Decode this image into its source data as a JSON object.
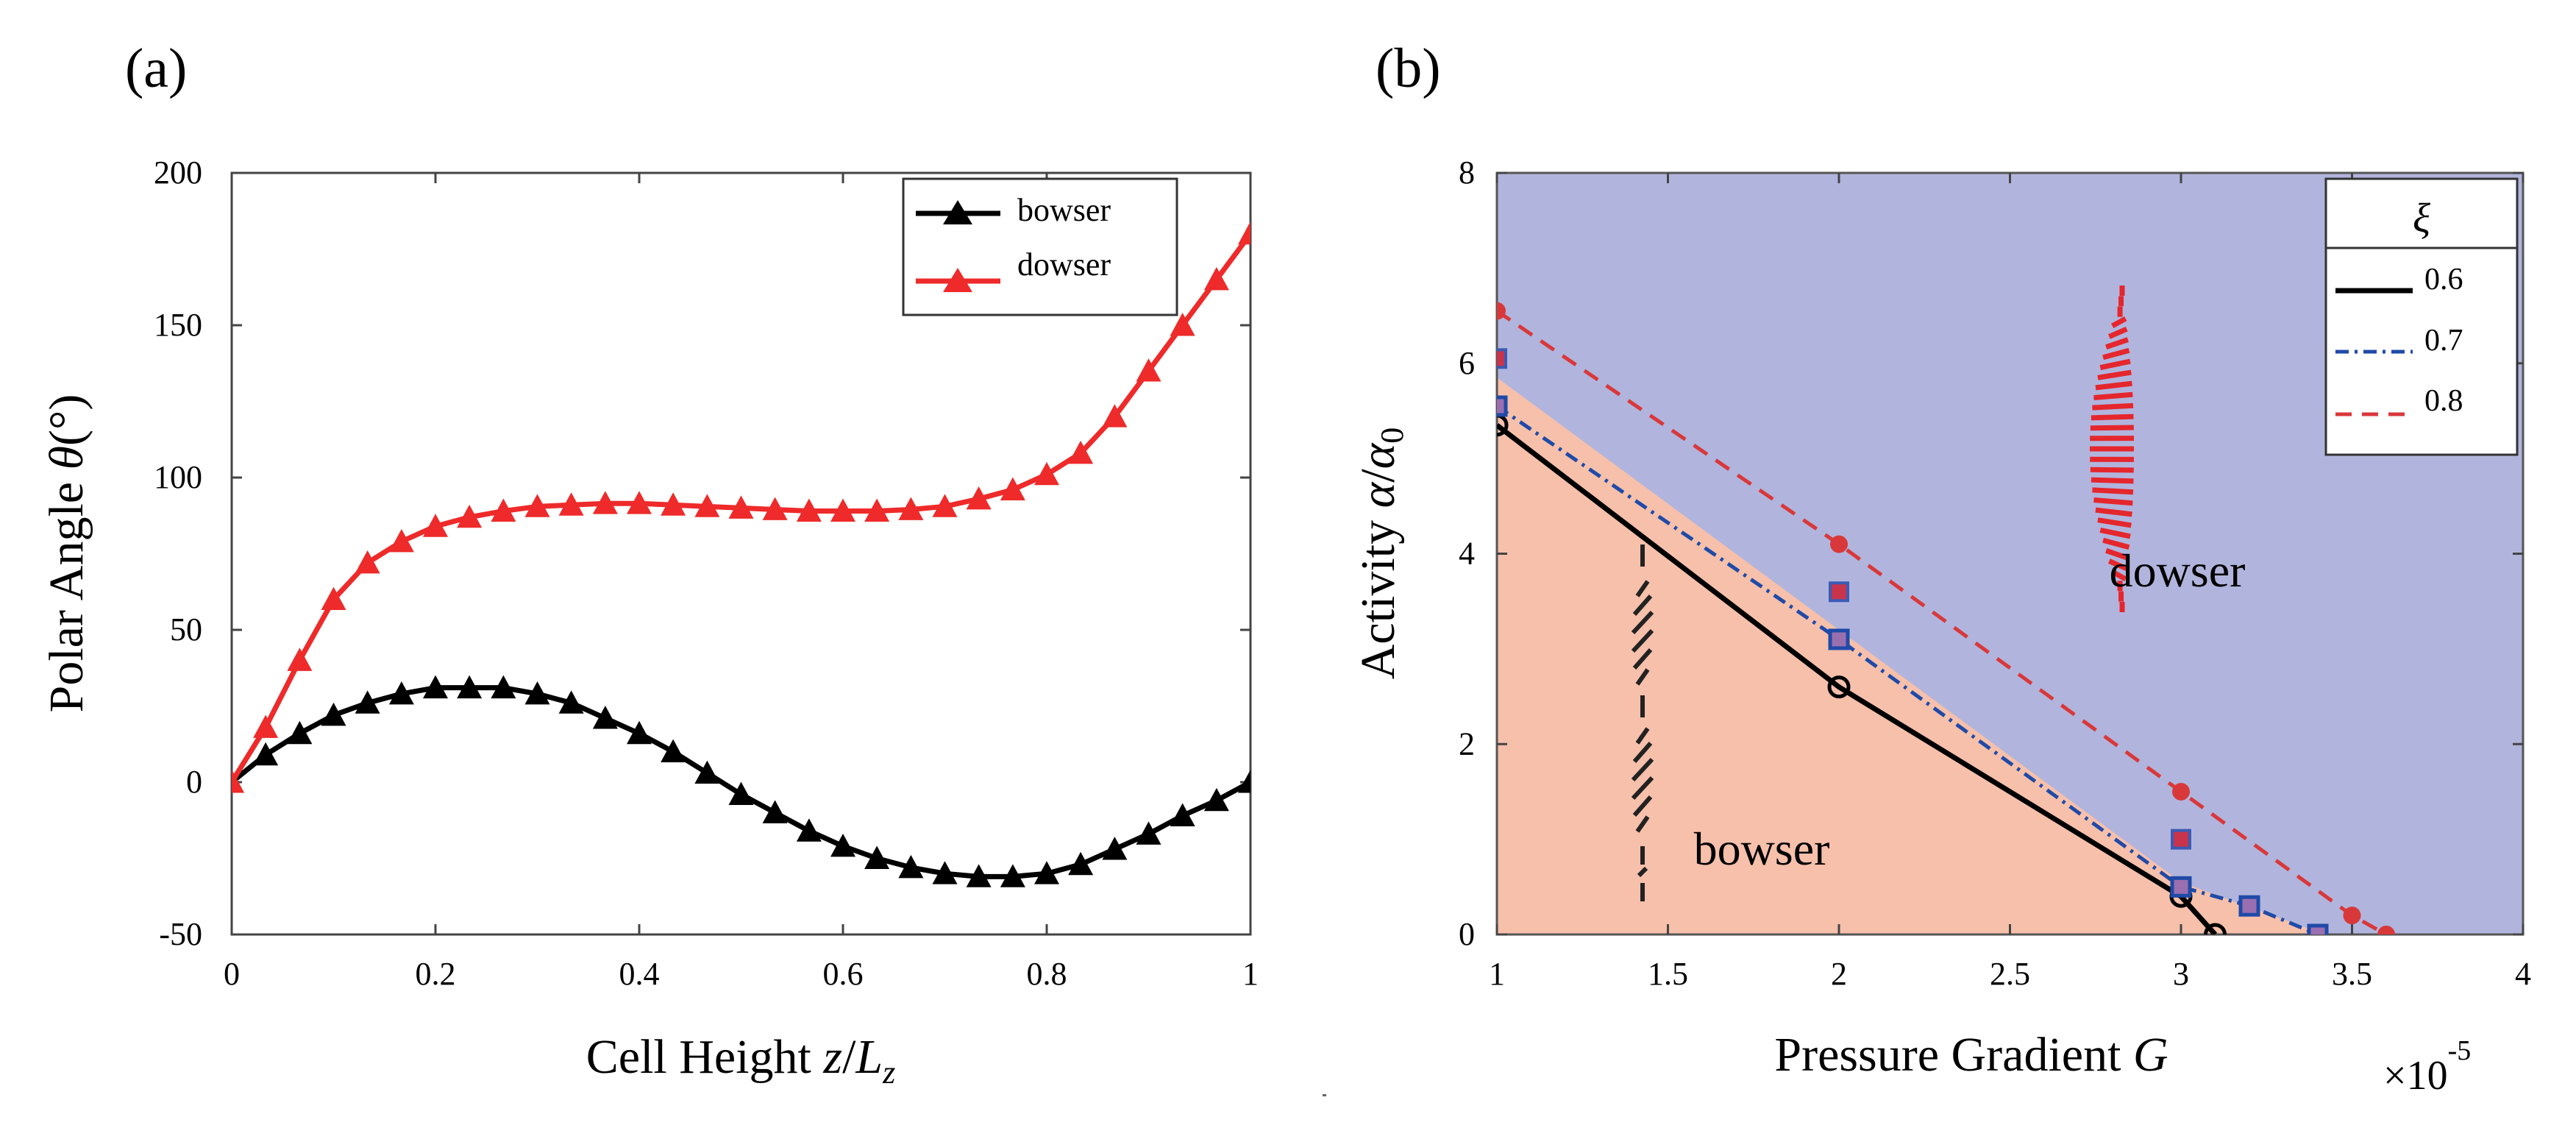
{
  "chart_data": [
    {
      "type": "line",
      "panel_label": "(a)",
      "title": "",
      "xlabel": "Cell Height z/L_z",
      "xlabel_parts": {
        "text": "Cell Height ",
        "var": "z",
        "slash": "/",
        "sub_base": "L",
        "sub": "z"
      },
      "ylabel": "Polar Angle θ(°)",
      "ylabel_parts": {
        "text": "Polar Angle ",
        "var": "θ",
        "unit": "(°)"
      },
      "xlim": [
        0,
        1
      ],
      "ylim": [
        -50,
        200
      ],
      "xticks": [
        "0",
        "0.2",
        "0.4",
        "0.6",
        "0.8",
        "1"
      ],
      "yticks": [
        "-50",
        "0",
        "50",
        "100",
        "150",
        "200"
      ],
      "legend_position": "top-right",
      "series": [
        {
          "name": "bowser",
          "color": "#000000",
          "marker": "triangle-filled",
          "x": [
            0,
            0.0333,
            0.0667,
            0.1,
            0.1333,
            0.1667,
            0.2,
            0.2333,
            0.2667,
            0.3,
            0.3333,
            0.3667,
            0.4,
            0.4333,
            0.4667,
            0.5,
            0.5333,
            0.5667,
            0.6,
            0.6333,
            0.6667,
            0.7,
            0.7333,
            0.7667,
            0.8,
            0.8333,
            0.8667,
            0.9,
            0.9333,
            0.9667,
            1
          ],
          "y": [
            0,
            9,
            16,
            22,
            26,
            29,
            31,
            31,
            31,
            29,
            26,
            21,
            16,
            10,
            3,
            -4,
            -10,
            -16,
            -21,
            -25,
            -28,
            -30,
            -31,
            -31,
            -30,
            -27,
            -22,
            -17,
            -11,
            -6,
            0
          ]
        },
        {
          "name": "dowser",
          "color": "#ee2a2a",
          "marker": "triangle-filled",
          "x": [
            0,
            0.0333,
            0.0667,
            0.1,
            0.1333,
            0.1667,
            0.2,
            0.2333,
            0.2667,
            0.3,
            0.3333,
            0.3667,
            0.4,
            0.4333,
            0.4667,
            0.5,
            0.5333,
            0.5667,
            0.6,
            0.6333,
            0.6667,
            0.7,
            0.7333,
            0.7667,
            0.8,
            0.8333,
            0.8667,
            0.9,
            0.9333,
            0.9667,
            1
          ],
          "y": [
            0,
            18,
            40,
            60,
            72,
            79,
            84,
            87,
            89,
            90.5,
            91,
            91.5,
            91.5,
            91,
            90.5,
            90,
            89.5,
            89,
            89,
            89,
            89.5,
            90.5,
            93,
            96,
            101,
            108,
            120,
            135,
            150,
            165,
            180
          ]
        }
      ]
    },
    {
      "type": "line",
      "panel_label": "(b)",
      "title": "",
      "xlabel": "Pressure Gradient G",
      "xlabel_parts": {
        "text": "Pressure Gradient ",
        "var": "G"
      },
      "ylabel": "Activity α/α0",
      "ylabel_parts": {
        "text": "Activity ",
        "var": "α",
        "slash": "/",
        "sub_base": "α",
        "sub": "0"
      },
      "x_multiplier": "×10",
      "x_multiplier_exp": "-5",
      "xlim": [
        1,
        4
      ],
      "ylim": [
        0,
        8
      ],
      "xticks": [
        "1",
        "1.5",
        "2",
        "2.5",
        "3",
        "3.5",
        "4"
      ],
      "yticks": [
        "0",
        "2",
        "4",
        "6",
        "8"
      ],
      "region_labels": [
        "dowser",
        "bowser"
      ],
      "region_colors": {
        "dowser": "#b1b5dd",
        "bowser": "#f6c0ab"
      },
      "legend_title": "ξ",
      "legend_position": "top-right",
      "boundary": {
        "x": [
          1,
          3.0,
          3.42
        ],
        "y": [
          5.85,
          0.55,
          0
        ]
      },
      "series": [
        {
          "name": "0.6",
          "color": "#000000",
          "style": "solid",
          "marker": "circle-open",
          "x": [
            1,
            2,
            3,
            3.1
          ],
          "y": [
            5.35,
            2.6,
            0.4,
            0
          ]
        },
        {
          "name": "0.7",
          "color": "#1f4aa8",
          "style": "dashdot",
          "marker": "square-open",
          "x": [
            1,
            2,
            3,
            3.2,
            3.4
          ],
          "y": [
            5.55,
            3.1,
            0.5,
            0.3,
            0
          ]
        },
        {
          "name": "0.8",
          "color": "#d9383a",
          "style": "dashed",
          "marker": "circle-filled",
          "x": [
            1,
            2,
            3,
            3.5,
            3.6
          ],
          "y": [
            6.55,
            4.1,
            1.5,
            0.2,
            0
          ]
        }
      ],
      "extra_markers": [
        {
          "series": "0.8",
          "marker": "square-filled",
          "color": "#c8344b",
          "x": [
            1,
            2,
            3
          ],
          "y": [
            6.05,
            3.6,
            1.0
          ]
        }
      ]
    }
  ]
}
